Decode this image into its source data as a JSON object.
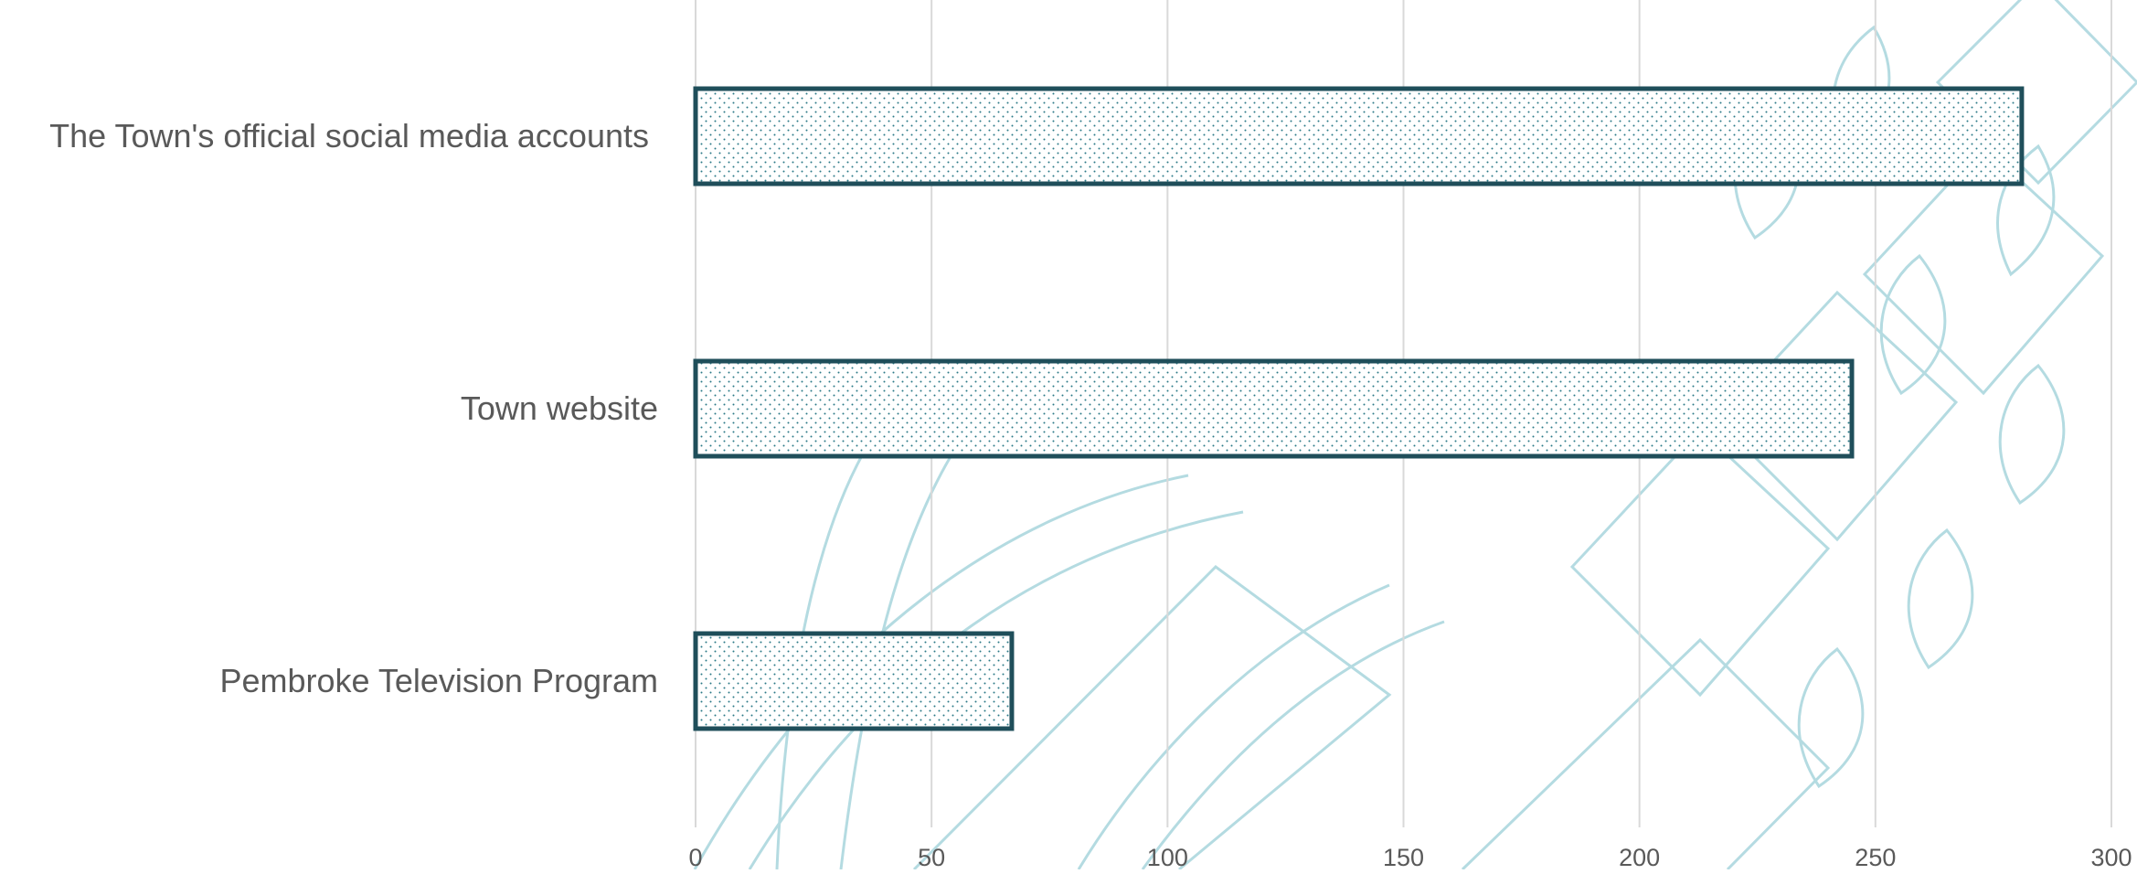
{
  "chart_data": {
    "type": "bar",
    "orientation": "horizontal",
    "categories": [
      "The Town's official social media accounts",
      "Town website",
      "Pembroke Television Program"
    ],
    "values": [
      281,
      245,
      67
    ],
    "xlim": [
      0,
      300
    ],
    "xticks": [
      0,
      50,
      100,
      150,
      200,
      250,
      300
    ],
    "grid": "vertical",
    "legend": "none",
    "bar_fill": "dotted",
    "colors": {
      "bar_outline": "#1f4e5a",
      "bar_dots": "#2b7a88",
      "grid": "#d9d9d9",
      "text": "#595959",
      "watermark": "#9ccfd8"
    }
  }
}
